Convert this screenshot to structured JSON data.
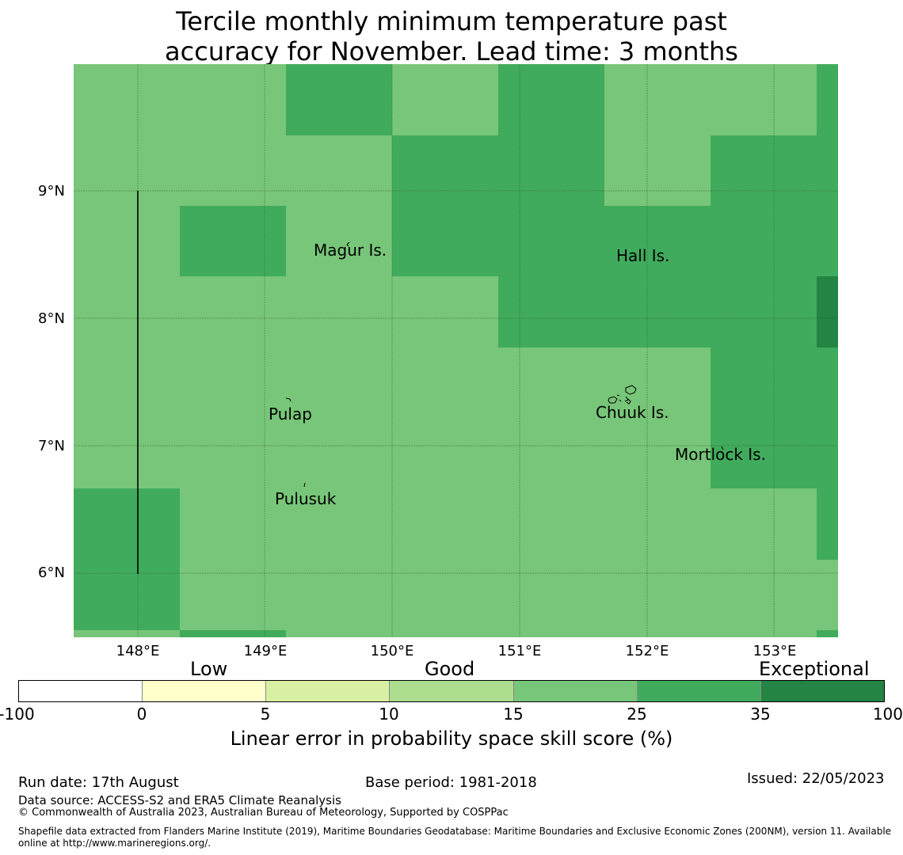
{
  "title_line1": "Tercile monthly minimum temperature past",
  "title_line2": "accuracy for November. Lead time: 3 months",
  "map": {
    "lon_ticks": [
      "148°E",
      "149°E",
      "150°E",
      "151°E",
      "152°E",
      "153°E"
    ],
    "lat_ticks": [
      "9°N",
      "8°N",
      "7°N",
      "6°N"
    ],
    "colors": {
      "score_15_25": "#78c679",
      "score_25_35": "#41ab5d",
      "score_35_100": "#238443"
    },
    "places": {
      "magur": "Magur Is.",
      "hall": "Hall Is.",
      "pulap": "Pulap",
      "chuuk": "Chuuk Is.",
      "mortlock": "Mortlock Is.",
      "pulusuk": "Pulusuk"
    }
  },
  "colorbar": {
    "categories": {
      "low": "Low",
      "good": "Good",
      "exceptional": "Exceptional"
    },
    "ticks": [
      "-100",
      "0",
      "5",
      "10",
      "15",
      "25",
      "35",
      "100"
    ],
    "colors": [
      "#ffffff",
      "#ffffcc",
      "#d9f0a3",
      "#addd8e",
      "#78c679",
      "#41ab5d",
      "#238443"
    ],
    "label": "Linear error in probability space skill score (%)"
  },
  "footer": {
    "run_date": "Run date: 17th August",
    "base_period": "Base period: 1981-2018",
    "issued": "Issued: 22/05/2023",
    "data_source": "Data source: ACCESS-S2 and ERA5 Climate Reanalysis",
    "copyright": "© Commonwealth of Australia 2023, Australian Bureau of Meteorology, Supported by COSPPac",
    "shapefile": "Shapefile data extracted from Flanders Marine Institute (2019), Maritime Boundaries Geodatabase: Maritime Boundaries and Exclusive Economic Zones (200NM), version 11. Available online at http://www.marineregions.org/."
  }
}
